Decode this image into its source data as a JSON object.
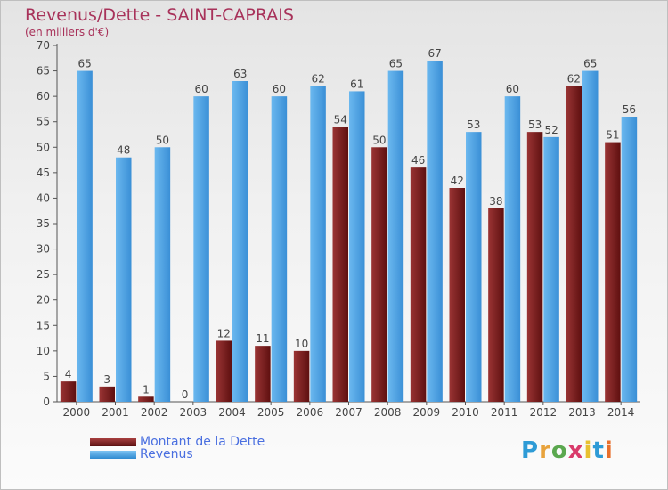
{
  "header": {
    "title": "Revenus/Dette - SAINT-CAPRAIS",
    "subtitle": "(en milliers d'€)"
  },
  "chart_data": {
    "type": "bar",
    "title": "Revenus/Dette - SAINT-CAPRAIS",
    "subtitle": "(en milliers d'€)",
    "categories": [
      "2000",
      "2001",
      "2002",
      "2003",
      "2004",
      "2005",
      "2006",
      "2007",
      "2008",
      "2009",
      "2010",
      "2011",
      "2012",
      "2013",
      "2014"
    ],
    "series": [
      {
        "name": "Montant de la Dette",
        "color": "#7a2020",
        "values": [
          4,
          3,
          1,
          0,
          12,
          11,
          10,
          54,
          50,
          46,
          42,
          38,
          53,
          62,
          51
        ]
      },
      {
        "name": "Revenus",
        "color": "#4aa3e6",
        "values": [
          65,
          48,
          50,
          60,
          63,
          60,
          62,
          61,
          65,
          67,
          53,
          60,
          52,
          65,
          56
        ]
      }
    ],
    "ylim": [
      0,
      70
    ],
    "yticks": [
      0,
      5,
      10,
      15,
      20,
      25,
      30,
      35,
      40,
      45,
      50,
      55,
      60,
      65,
      70
    ],
    "grid": false,
    "legend_position": "bottom-left"
  },
  "legend": {
    "debt_label": "Montant de la Dette",
    "revenue_label": "Revenus"
  },
  "logo": {
    "letters": [
      "P",
      "r",
      "o",
      "x",
      "i",
      "t",
      "i"
    ],
    "colors": [
      "#2e9bd6",
      "#e8a33c",
      "#5ba84f",
      "#d93b6b",
      "#e8c030",
      "#2e9bd6",
      "#e86f2c"
    ]
  }
}
